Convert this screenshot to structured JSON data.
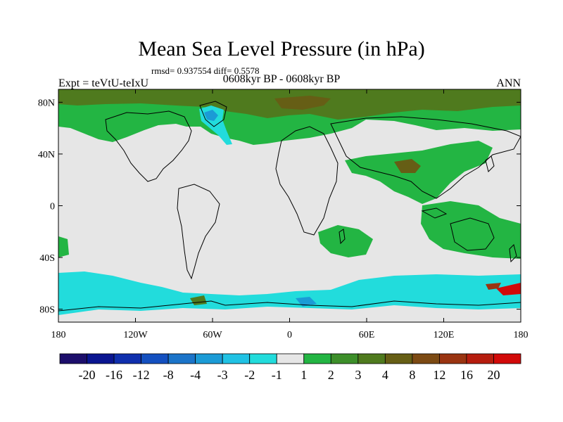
{
  "title": "Mean Sea Level Pressure (in hPa)",
  "stats": "rmsd= 0.937554  diff= 0.5578",
  "expt_label": "Expt = teVtU-teIxU",
  "period_label": "0608kyr BP - 0608kyr BP",
  "season_label": "ANN",
  "map": {
    "lon_range": [
      -180,
      180
    ],
    "lat_range": [
      -90,
      90
    ],
    "background_color": "#e6e6e6",
    "lon_ticks": [
      {
        "value": -180,
        "label": "180"
      },
      {
        "value": -120,
        "label": "120W"
      },
      {
        "value": -60,
        "label": "60W"
      },
      {
        "value": 0,
        "label": "0"
      },
      {
        "value": 60,
        "label": "60E"
      },
      {
        "value": 120,
        "label": "120E"
      },
      {
        "value": 180,
        "label": "180"
      }
    ],
    "lat_ticks": [
      {
        "value": 80,
        "label": "80N"
      },
      {
        "value": 40,
        "label": "40N"
      },
      {
        "value": 0,
        "label": "0"
      },
      {
        "value": -40,
        "label": "40S"
      },
      {
        "value": -80,
        "label": "80S"
      }
    ]
  },
  "colorbar": {
    "colors": [
      "#1c0e6b",
      "#0a1590",
      "#0f2fad",
      "#1450c0",
      "#1b74c9",
      "#1b9bd6",
      "#20c2e4",
      "#22dcdc",
      "#e6e6e6",
      "#23b543",
      "#3d8f2a",
      "#4f7a1e",
      "#665e15",
      "#7c4a13",
      "#9a3411",
      "#b61d0e",
      "#d20a09"
    ],
    "labels": [
      "-20",
      "-16",
      "-12",
      "-8",
      "-4",
      "-3",
      "-2",
      "-1",
      "1",
      "2",
      "3",
      "4",
      "8",
      "12",
      "16",
      "20"
    ]
  }
}
